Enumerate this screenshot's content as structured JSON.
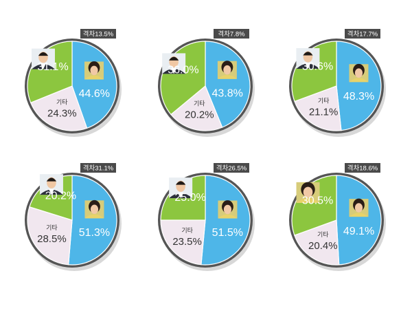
{
  "colors": {
    "blue": "#4eb6e8",
    "green": "#8cc63f",
    "other": "#f1e7ef",
    "rim": "#555555",
    "badge_bg": "#4a4a4a",
    "badge_text": "#ffffff",
    "value_text": "#ffffff",
    "other_text": "#333333"
  },
  "chart_data": [
    {
      "type": "pie",
      "badge": "격차13.5%",
      "slices": [
        {
          "label": "",
          "value": 44.6,
          "value_text": "44.6%",
          "color": "#4eb6e8",
          "portrait": "woman-portrait-icon"
        },
        {
          "label": "기타",
          "value": 24.3,
          "value_text": "24.3%",
          "color": "#f1e7ef"
        },
        {
          "label": "",
          "value": 31.1,
          "value_text": "31.1%",
          "color": "#8cc63f",
          "portrait": "man-portrait-icon"
        }
      ]
    },
    {
      "type": "pie",
      "badge": "격차7.8%",
      "slices": [
        {
          "label": "",
          "value": 43.8,
          "value_text": "43.8%",
          "color": "#4eb6e8",
          "portrait": "woman-portrait-icon"
        },
        {
          "label": "기타",
          "value": 20.2,
          "value_text": "20.2%",
          "color": "#f1e7ef"
        },
        {
          "label": "",
          "value": 36.0,
          "value_text": "36.0%",
          "color": "#8cc63f",
          "portrait": "man-portrait-icon"
        }
      ]
    },
    {
      "type": "pie",
      "badge": "격차17.7%",
      "slices": [
        {
          "label": "",
          "value": 48.3,
          "value_text": "48.3%",
          "color": "#4eb6e8",
          "portrait": "woman-portrait-icon"
        },
        {
          "label": "기타",
          "value": 21.1,
          "value_text": "21.1%",
          "color": "#f1e7ef"
        },
        {
          "label": "",
          "value": 30.6,
          "value_text": "30.6%",
          "color": "#8cc63f",
          "portrait": "man-portrait-icon"
        }
      ]
    },
    {
      "type": "pie",
      "badge": "격차31.1%",
      "slices": [
        {
          "label": "",
          "value": 51.3,
          "value_text": "51.3%",
          "color": "#4eb6e8",
          "portrait": "woman-portrait-icon"
        },
        {
          "label": "기타",
          "value": 28.5,
          "value_text": "28.5%",
          "color": "#f1e7ef"
        },
        {
          "label": "",
          "value": 20.2,
          "value_text": "20.2%",
          "color": "#8cc63f",
          "portrait": "man-portrait-icon"
        }
      ]
    },
    {
      "type": "pie",
      "badge": "격차26.5%",
      "slices": [
        {
          "label": "",
          "value": 51.5,
          "value_text": "51.5%",
          "color": "#4eb6e8",
          "portrait": "woman-portrait-icon"
        },
        {
          "label": "기타",
          "value": 23.5,
          "value_text": "23.5%",
          "color": "#f1e7ef"
        },
        {
          "label": "",
          "value": 25.0,
          "value_text": "25.0%",
          "color": "#8cc63f",
          "portrait": "man-portrait-icon"
        }
      ]
    },
    {
      "type": "pie",
      "badge": "격차18.6%",
      "slices": [
        {
          "label": "",
          "value": 49.1,
          "value_text": "49.1%",
          "color": "#4eb6e8",
          "portrait": "woman-portrait-icon"
        },
        {
          "label": "기타",
          "value": 20.4,
          "value_text": "20.4%",
          "color": "#f1e7ef"
        },
        {
          "label": "",
          "value": 30.5,
          "value_text": "30.5%",
          "color": "#8cc63f",
          "portrait": "woman-portrait-icon"
        }
      ]
    }
  ]
}
